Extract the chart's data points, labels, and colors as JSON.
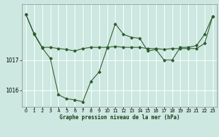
{
  "title": "Graphe pression niveau de la mer (hPa)",
  "background_color": "#cce8e0",
  "grid_color": "#ffffff",
  "line_color": "#2d5a2d",
  "x_ticks": [
    0,
    1,
    2,
    3,
    4,
    5,
    6,
    7,
    8,
    9,
    10,
    11,
    12,
    13,
    14,
    15,
    16,
    17,
    18,
    19,
    20,
    21,
    22,
    23
  ],
  "y_ticks": [
    1016,
    1017
  ],
  "ylim": [
    1015.45,
    1018.85
  ],
  "xlim": [
    -0.5,
    23.5
  ],
  "series_jagged": {
    "x": [
      0,
      1,
      2,
      3,
      4,
      5,
      6,
      7,
      8,
      9,
      10,
      11,
      12,
      13,
      14,
      15,
      16,
      17,
      18,
      19,
      20,
      21,
      22,
      23
    ],
    "y": [
      1018.5,
      1017.85,
      1017.4,
      1017.05,
      1015.85,
      1015.72,
      1015.68,
      1015.62,
      1016.3,
      1016.6,
      1017.4,
      1018.2,
      1017.85,
      1017.75,
      1017.72,
      1017.3,
      1017.35,
      1017.0,
      1017.0,
      1017.42,
      1017.42,
      1017.48,
      1017.85,
      1018.45
    ]
  },
  "series_smooth": {
    "x": [
      0,
      1,
      2,
      3,
      4,
      5,
      6,
      7,
      8,
      9,
      10,
      11,
      12,
      13,
      14,
      15,
      16,
      17,
      18,
      19,
      20,
      21,
      22,
      23
    ],
    "y": [
      1018.5,
      1017.88,
      1017.42,
      1017.42,
      1017.38,
      1017.35,
      1017.3,
      1017.38,
      1017.42,
      1017.42,
      1017.42,
      1017.45,
      1017.42,
      1017.42,
      1017.42,
      1017.38,
      1017.38,
      1017.35,
      1017.38,
      1017.38,
      1017.38,
      1017.38,
      1017.55,
      1018.45
    ]
  }
}
